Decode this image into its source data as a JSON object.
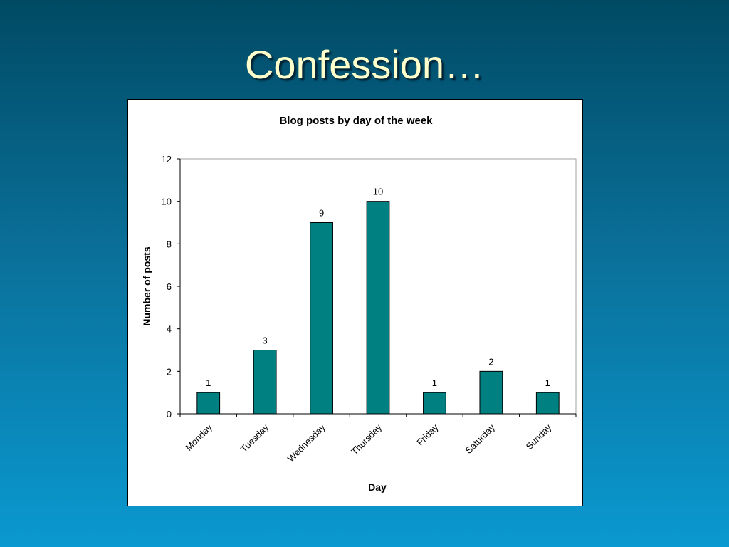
{
  "slide": {
    "title": "Confession…"
  },
  "colors": {
    "bar_fill": "#008080",
    "bar_stroke": "#000000",
    "title_text": "#ffffcc"
  },
  "chart_data": {
    "type": "bar",
    "title": "Blog posts by day of the week",
    "xlabel": "Day",
    "ylabel": "Number of posts",
    "categories": [
      "Monday",
      "Tuesday",
      "Wednesday",
      "Thursday",
      "Friday",
      "Saturday",
      "Sunday"
    ],
    "values": [
      1,
      3,
      9,
      10,
      1,
      2,
      1
    ],
    "ylim": [
      0,
      12
    ],
    "yticks": [
      0,
      2,
      4,
      6,
      8,
      10,
      12
    ],
    "data_labels": true,
    "grid": false,
    "legend": "none"
  }
}
